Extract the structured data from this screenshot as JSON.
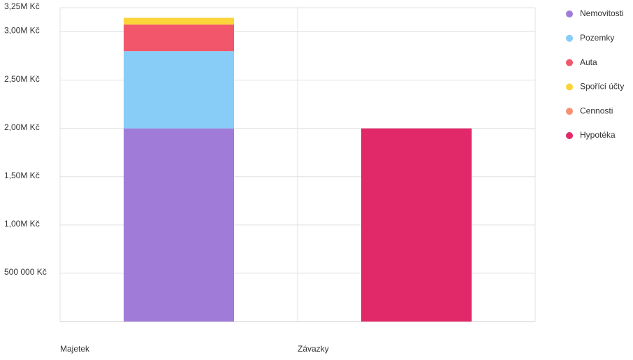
{
  "chart_data": {
    "type": "stacked-bar",
    "categories": [
      "Majetek",
      "Závazky"
    ],
    "series": [
      {
        "name": "Nemovitosti",
        "color": "#a07cd8",
        "values": [
          2000000,
          null
        ]
      },
      {
        "name": "Pozemky",
        "color": "#88ccf8",
        "values": [
          800000,
          null
        ]
      },
      {
        "name": "Auta",
        "color": "#f2566b",
        "values": [
          275000,
          null
        ]
      },
      {
        "name": "Spořící účty",
        "color": "#fdd33a",
        "values": [
          70000,
          null
        ]
      },
      {
        "name": "Cennosti",
        "color": "#f79070",
        "values": [
          0,
          null
        ]
      },
      {
        "name": "Hypotéka",
        "color": "#e12868",
        "values": [
          null,
          2000000
        ]
      }
    ],
    "ylim": [
      0,
      3250000
    ],
    "yticks": [
      {
        "value": 500000,
        "label": "500 000 Kč"
      },
      {
        "value": 1000000,
        "label": "1,00M Kč"
      },
      {
        "value": 1500000,
        "label": "1,50M Kč"
      },
      {
        "value": 2000000,
        "label": "2,00M Kč"
      },
      {
        "value": 2500000,
        "label": "2,50M Kč"
      },
      {
        "value": 3000000,
        "label": "3,00M Kč"
      },
      {
        "value": 3250000,
        "label": "3,25M Kč"
      }
    ],
    "grid": true,
    "legend": "right"
  }
}
